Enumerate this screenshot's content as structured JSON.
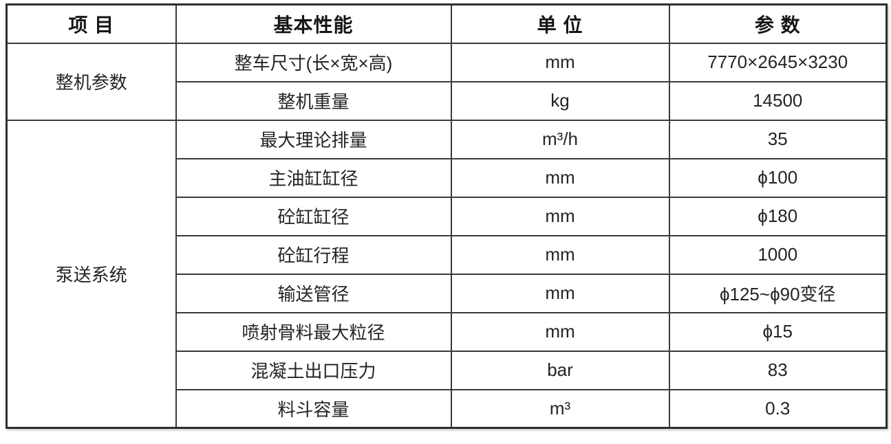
{
  "table": {
    "headers": [
      {
        "label": "项  目"
      },
      {
        "label": "基本性能"
      },
      {
        "label": "单  位"
      },
      {
        "label": "参  数"
      }
    ],
    "groups": [
      {
        "name": "整机参数",
        "rows": [
          {
            "performance": "整车尺寸(长×宽×高)",
            "unit": "mm",
            "value": "7770×2645×3230"
          },
          {
            "performance": "整机重量",
            "unit": "kg",
            "value": "14500"
          }
        ]
      },
      {
        "name": "泵送系统",
        "rows": [
          {
            "performance": "最大理论排量",
            "unit": "m³/h",
            "value": "35"
          },
          {
            "performance": "主油缸缸径",
            "unit": "mm",
            "value": "ϕ100"
          },
          {
            "performance": "砼缸缸径",
            "unit": "mm",
            "value": "ϕ180"
          },
          {
            "performance": "砼缸行程",
            "unit": "mm",
            "value": "1000"
          },
          {
            "performance": "输送管径",
            "unit": "mm",
            "value": "ϕ125~ϕ90变径"
          },
          {
            "performance": "喷射骨料最大粒径",
            "unit": "mm",
            "value": "ϕ15"
          },
          {
            "performance": "混凝土出口压力",
            "unit": "bar",
            "value": "83"
          },
          {
            "performance": "料斗容量",
            "unit": "m³",
            "value": "0.3"
          }
        ]
      }
    ]
  },
  "colors": {
    "border_outer": "#2e2e2e",
    "border_inner": "#3a3a3a",
    "text": "#242424",
    "header_text": "#161616",
    "background": "#ffffff"
  }
}
